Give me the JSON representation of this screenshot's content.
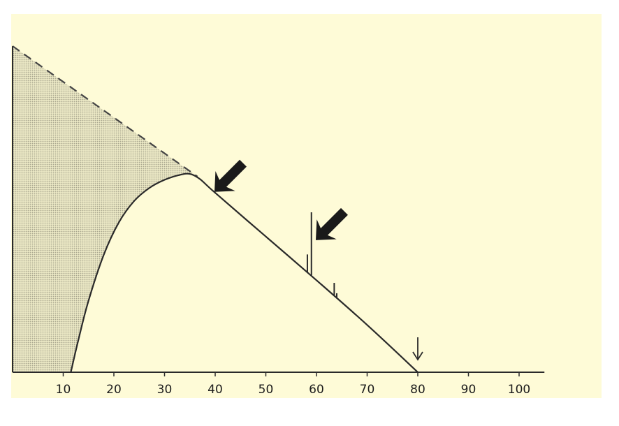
{
  "chart_data": {
    "type": "line",
    "title": "",
    "xlabel": "",
    "ylabel": "",
    "xlim": [
      0,
      105
    ],
    "ylim": [
      0,
      100
    ],
    "x_ticks": [
      10,
      20,
      30,
      40,
      50,
      60,
      70,
      80,
      90,
      100
    ],
    "x_tick_labels": [
      "10",
      "20",
      "30",
      "40",
      "50",
      "60",
      "70",
      "80",
      "90",
      "100"
    ],
    "grid": false,
    "legend": "none",
    "series": [
      {
        "style": "solid",
        "points": [
          [
            11.5,
            0
          ],
          [
            13,
            10
          ],
          [
            15,
            22
          ],
          [
            18,
            36
          ],
          [
            21,
            46
          ],
          [
            24,
            52.5
          ],
          [
            27,
            56.5
          ],
          [
            30,
            59
          ],
          [
            33,
            60.5
          ],
          [
            35,
            60.8
          ],
          [
            37,
            59.2
          ],
          [
            40,
            55
          ],
          [
            50,
            41.6
          ],
          [
            60,
            28.2
          ],
          [
            70,
            14.5
          ],
          [
            80,
            0
          ]
        ],
        "spikes": [
          {
            "x": 58.2,
            "height": 5.5
          },
          {
            "x": 59.0,
            "height": 19.5
          },
          {
            "x": 63.5,
            "height": 4.0
          },
          {
            "x": 64.0,
            "height": 1.5
          }
        ]
      },
      {
        "style": "dashed",
        "points": [
          [
            0,
            100
          ],
          [
            36.5,
            60
          ]
        ]
      }
    ],
    "shaded_region": "area between dashed line and solid curve",
    "annotations": [
      {
        "type": "bold-arrow",
        "points_to_x": 40
      },
      {
        "type": "bold-arrow",
        "points_to_x": 60
      },
      {
        "type": "thin-arrow-down",
        "points_to_x": 80
      }
    ],
    "colors": {
      "background": "#fefbd7",
      "line": "#2a2a2a",
      "shading": "#c9c6ad"
    }
  }
}
